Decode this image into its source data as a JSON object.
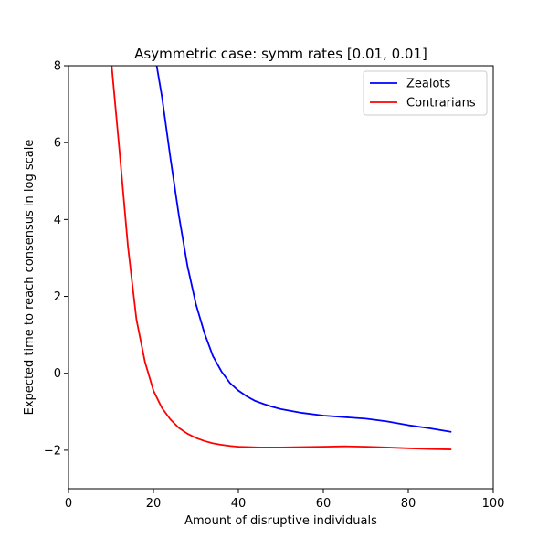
{
  "chart_data": {
    "type": "line",
    "title": "Asymmetric case: symm rates [0.01, 0.01]",
    "xlabel": "Amount of disruptive individuals",
    "ylabel": "Expected time to reach consensus in log scale",
    "xlim": [
      0,
      100
    ],
    "ylim": [
      -3,
      8
    ],
    "xticks": [
      0,
      20,
      40,
      60,
      80,
      100
    ],
    "yticks": [
      -2,
      0,
      2,
      4,
      6,
      8
    ],
    "xtick_labels": [
      "0",
      "20",
      "40",
      "60",
      "80",
      "100"
    ],
    "ytick_labels": [
      "−2",
      "0",
      "2",
      "4",
      "6",
      "8"
    ],
    "grid": false,
    "legend_position": "top-right",
    "series": [
      {
        "name": "Zealots",
        "color": "#0000ff",
        "x": [
          20,
          22,
          24,
          26,
          28,
          30,
          32,
          34,
          36,
          38,
          40,
          42,
          44,
          46,
          48,
          50,
          55,
          60,
          65,
          70,
          75,
          80,
          85,
          90
        ],
        "y": [
          8.5,
          7.2,
          5.6,
          4.1,
          2.8,
          1.8,
          1.05,
          0.45,
          0.05,
          -0.25,
          -0.45,
          -0.6,
          -0.72,
          -0.8,
          -0.87,
          -0.93,
          -1.03,
          -1.1,
          -1.14,
          -1.18,
          -1.25,
          -1.35,
          -1.43,
          -1.52
        ]
      },
      {
        "name": "Contrarians",
        "color": "#ff0000",
        "x": [
          10,
          12,
          14,
          16,
          18,
          20,
          22,
          24,
          26,
          28,
          30,
          32,
          34,
          36,
          38,
          40,
          45,
          50,
          55,
          60,
          65,
          70,
          75,
          80,
          85,
          90
        ],
        "y": [
          8.2,
          5.8,
          3.3,
          1.4,
          0.3,
          -0.45,
          -0.9,
          -1.2,
          -1.42,
          -1.57,
          -1.68,
          -1.76,
          -1.82,
          -1.86,
          -1.89,
          -1.91,
          -1.93,
          -1.93,
          -1.92,
          -1.91,
          -1.9,
          -1.91,
          -1.93,
          -1.95,
          -1.97,
          -1.98
        ]
      }
    ]
  }
}
